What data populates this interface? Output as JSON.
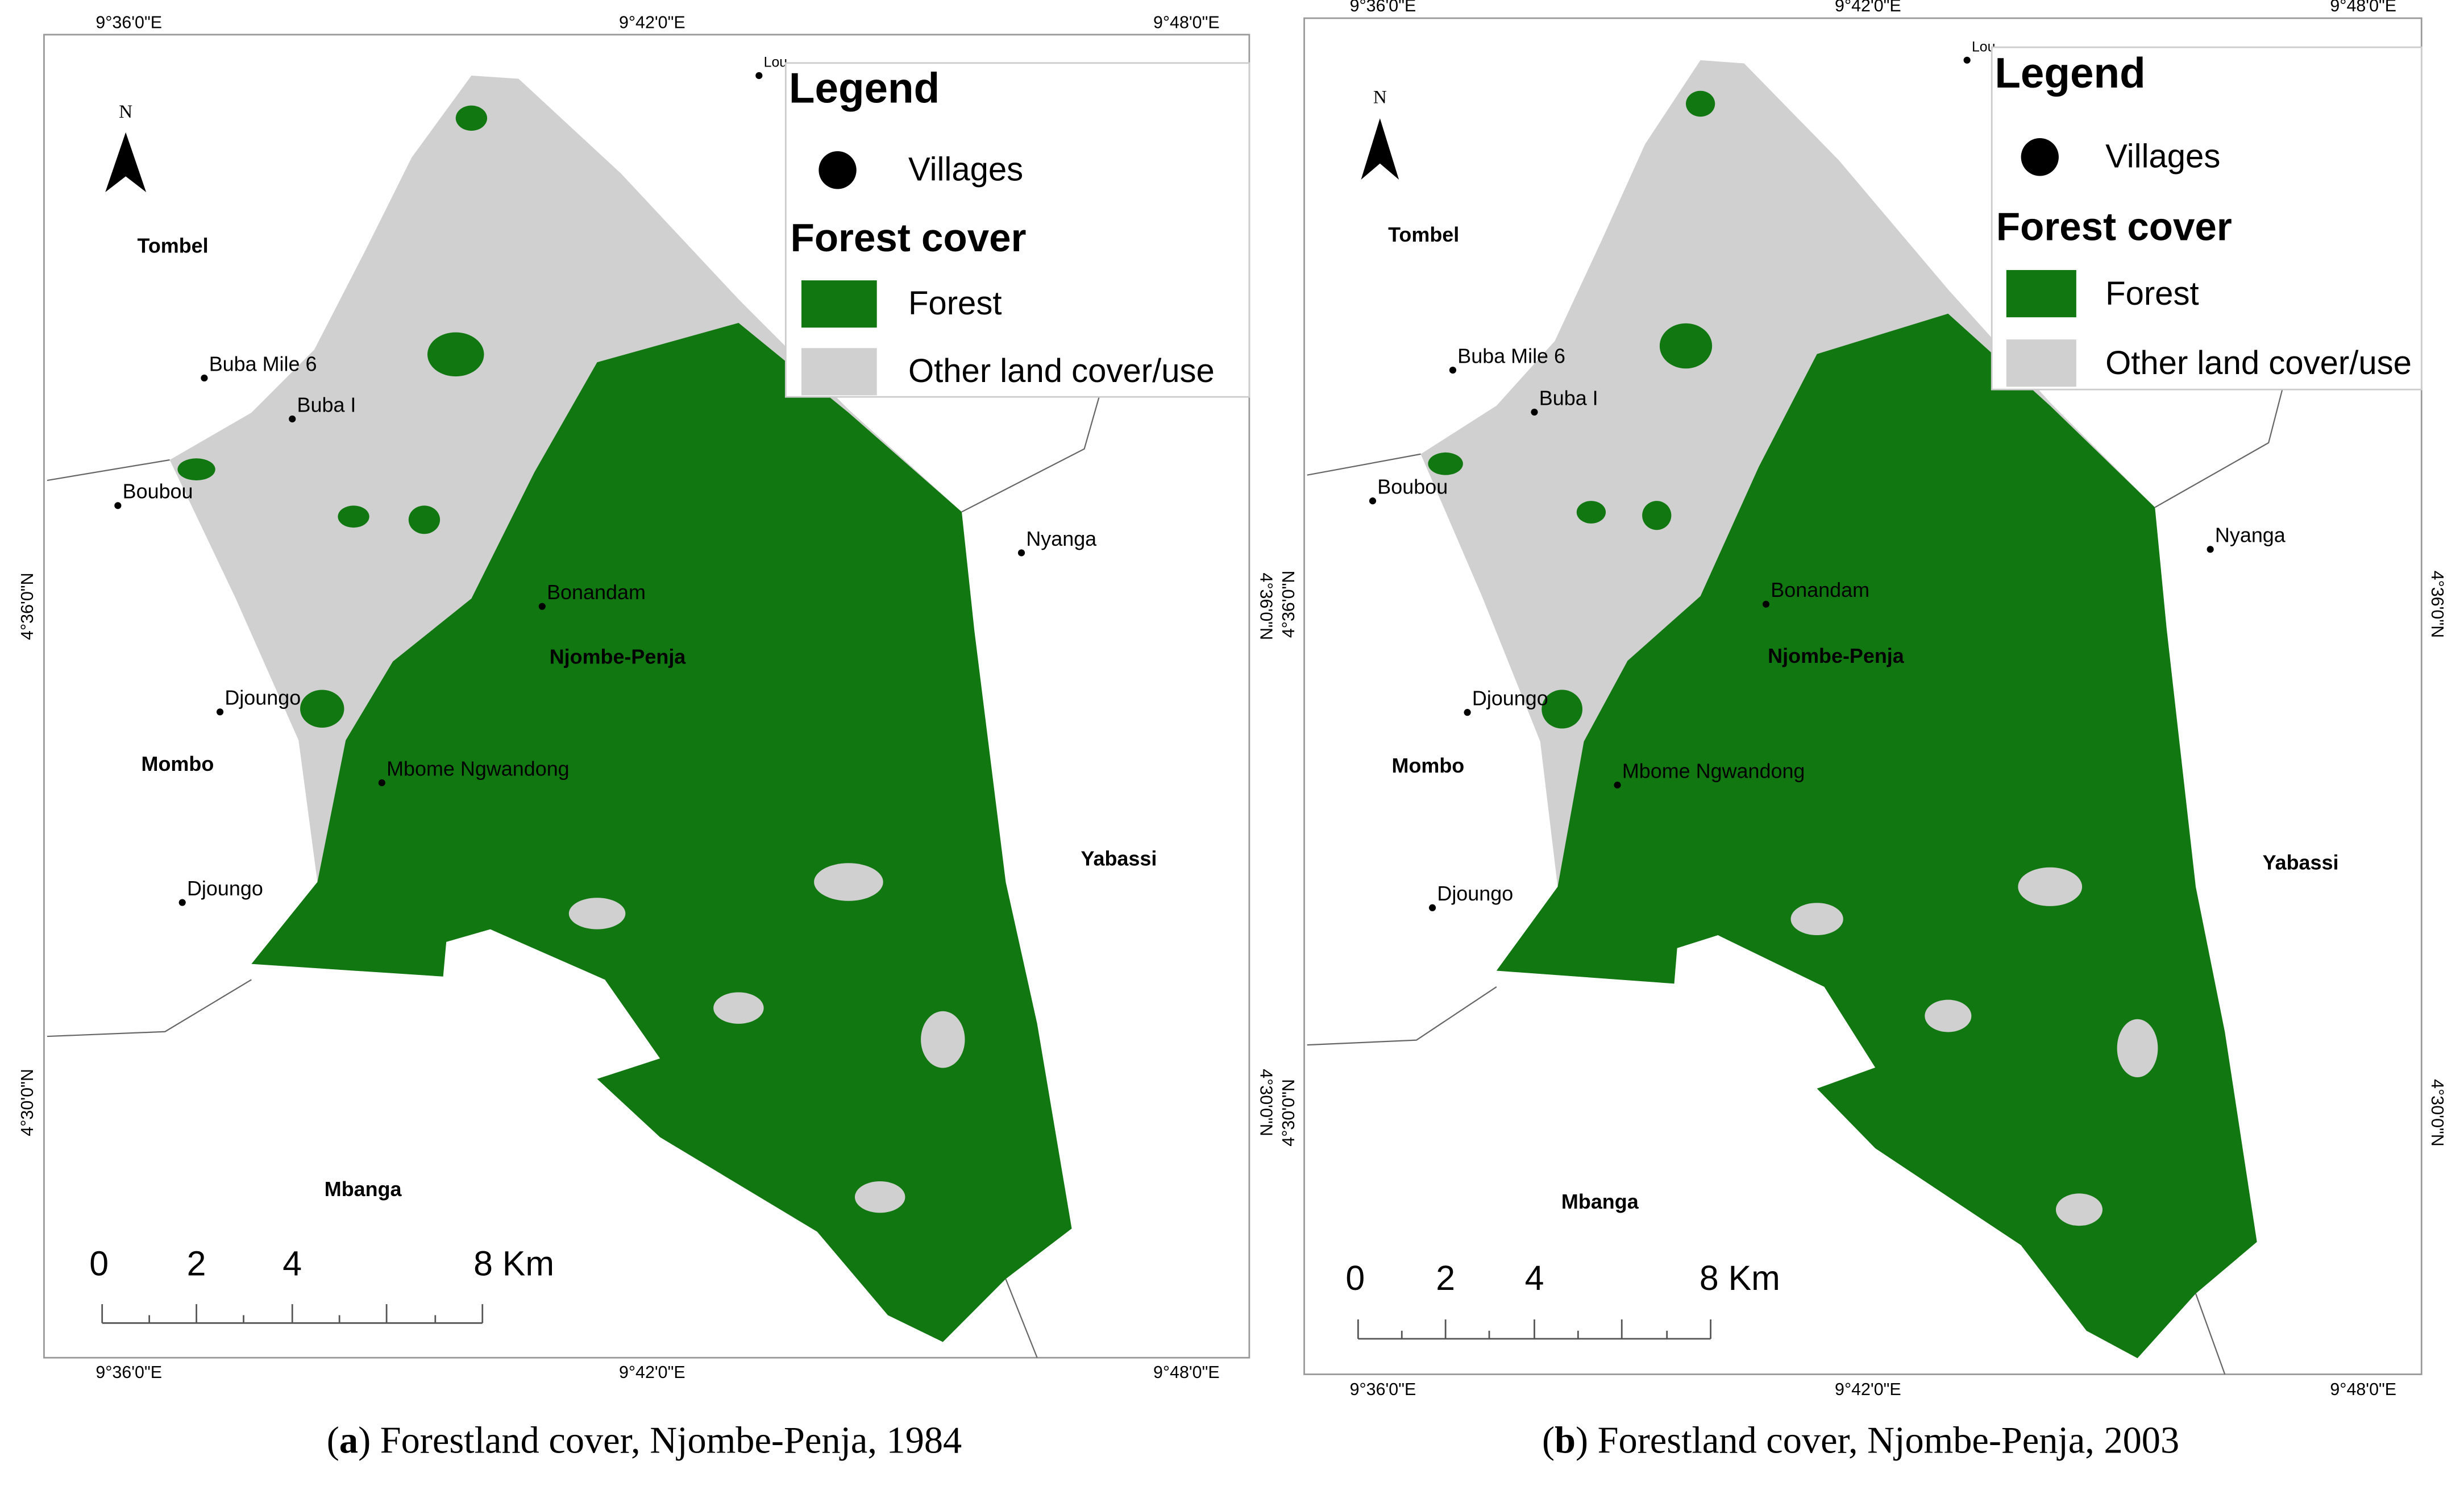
{
  "panels": [
    {
      "caption": {
        "open": "(",
        "letter": "a",
        "text": ") Forestland cover, Njombe-Penja, 1984"
      },
      "top_coords": [
        "9°36'0\"E",
        "9°42'0\"E",
        "9°48'0\"E"
      ],
      "bottom_coords": [
        "9°36'0\"E",
        "9°42'0\"E",
        "9°48'0\"E"
      ],
      "left_coords": [
        "4°36'0\"N",
        "4°30'0\"N"
      ],
      "right_coords": [
        "4°36'0\"N",
        "4°30'0\"N"
      ],
      "north": "N",
      "legend": {
        "title": "Legend",
        "villages": "Villages",
        "section": "Forest cover",
        "items": [
          "Forest",
          "Other land cover/use"
        ]
      },
      "villages": [
        "Lou",
        "Buba Mile 6",
        "Buba I",
        "Boubou",
        "Bonandam",
        "Djoungo",
        "Mbome Ngwandong",
        "Djoungo",
        "Nyanga"
      ],
      "regions": [
        "Tombel",
        "Mombo",
        "Njombe-Penja",
        "Yabassi",
        "Mbanga"
      ],
      "scale": [
        "0",
        "2",
        "4",
        "8 Km"
      ]
    },
    {
      "caption": {
        "open": "(",
        "letter": "b",
        "text": ") Forestland cover, Njombe-Penja, 2003"
      },
      "top_coords": [
        "9°36'0\"E",
        "9°42'0\"E",
        "9°48'0\"E"
      ],
      "bottom_coords": [
        "9°36'0\"E",
        "9°42'0\"E",
        "9°48'0\"E"
      ],
      "left_coords": [
        "4°36'0\"N",
        "4°30'0\"N"
      ],
      "right_coords": [
        "4°36'0\"N",
        "4°30'0\"N"
      ],
      "north": "N",
      "legend": {
        "title": "Legend",
        "villages": "Villages",
        "section": "Forest cover",
        "items": [
          "Forest",
          "Other land cover/use"
        ]
      },
      "villages": [
        "Lou",
        "Buba Mile 6",
        "Buba I",
        "Boubou",
        "Bonandam",
        "Djoungo",
        "Mbome Ngwandong",
        "Djoungo",
        "Nyanga"
      ],
      "regions": [
        "Tombel",
        "Mombo",
        "Njombe-Penja",
        "Yabassi",
        "Mbanga"
      ],
      "scale": [
        "0",
        "2",
        "4",
        "8 Km"
      ]
    }
  ]
}
